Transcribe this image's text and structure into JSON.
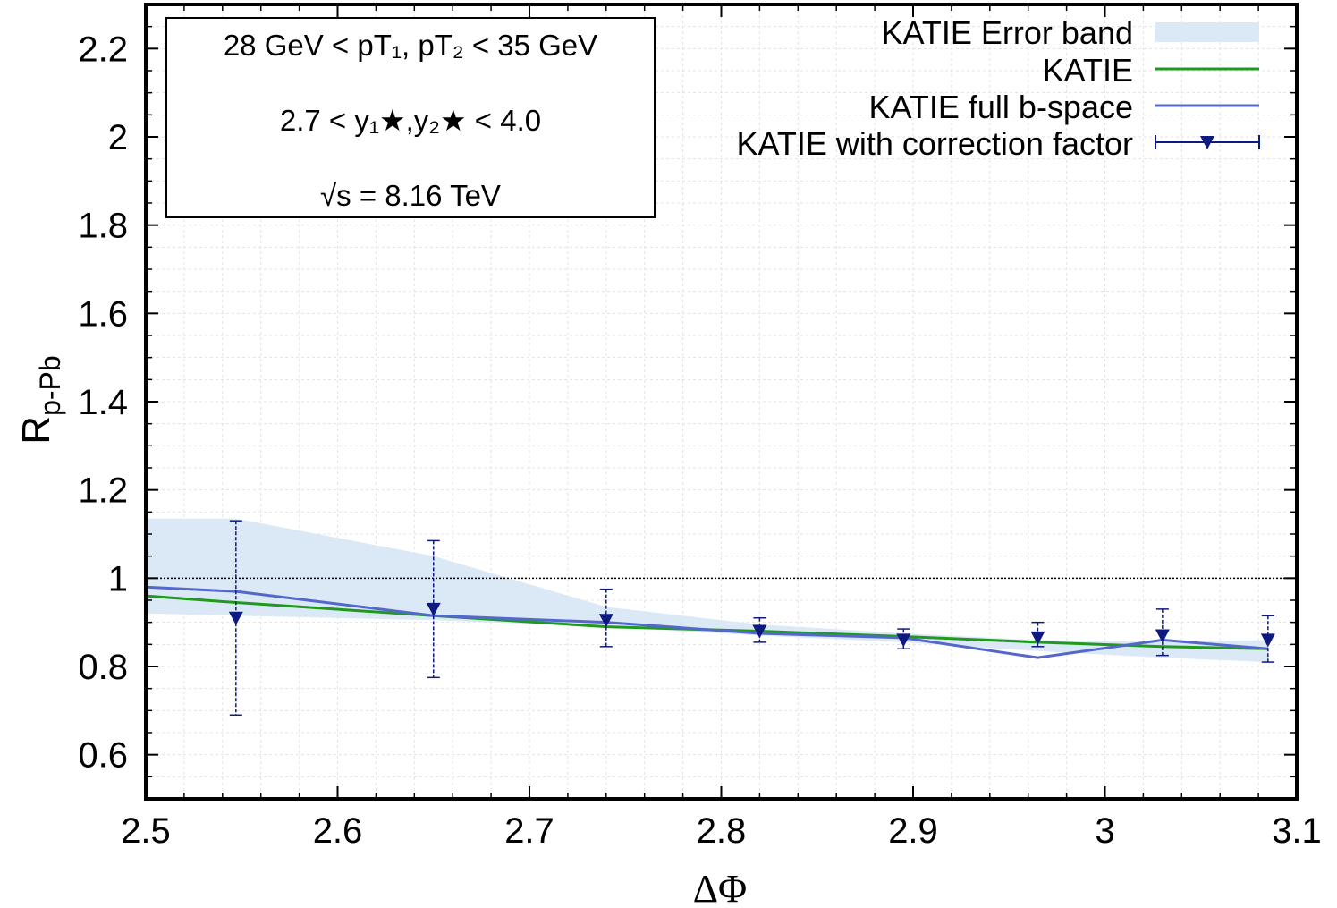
{
  "chart_data": {
    "type": "line",
    "xlabel": "ΔΦ",
    "ylabel": "R",
    "ylabel_sub": "p-Pb",
    "xlim": [
      2.5,
      3.1
    ],
    "ylim": [
      0.5,
      2.3
    ],
    "xticks": [
      2.5,
      2.6,
      2.7,
      2.8,
      2.9,
      3.0,
      3.1
    ],
    "xtick_labels": [
      "2.5",
      "2.6",
      "2.7",
      "2.8",
      "2.9",
      "3",
      "3.1"
    ],
    "yticks": [
      0.6,
      0.8,
      1.0,
      1.2,
      1.4,
      1.6,
      1.8,
      2.0,
      2.2
    ],
    "ytick_labels": [
      "0.6",
      "0.8",
      "1",
      "1.2",
      "1.4",
      "1.6",
      "1.8",
      "2",
      "2.2"
    ],
    "grid": true,
    "reference_line": 1.0,
    "info_box": {
      "line1": "28 GeV < pT₁, pT₂ < 35 GeV",
      "line2": "2.7 < y₁★,y₂★ < 4.0",
      "line3_root": "√s",
      "line3_rest": " = 8.16 TeV"
    },
    "legend": {
      "band": "KATIE Error band",
      "katie": "KATIE",
      "full_b": "KATIE full b-space",
      "corr": "KATIE with correction factor"
    },
    "colors": {
      "band": "#dbe8f6",
      "katie": "#1f9a1f",
      "full_b": "#5468cc",
      "corr": "#0f1a80"
    },
    "series": [
      {
        "name": "KATIE Error band",
        "x": [
          2.5,
          2.547,
          2.65,
          2.74,
          2.82,
          2.895,
          2.965,
          3.03,
          3.085
        ],
        "upper": [
          1.135,
          1.135,
          1.05,
          0.935,
          0.895,
          0.875,
          0.86,
          0.855,
          0.86
        ],
        "lower": [
          0.92,
          0.915,
          0.905,
          0.89,
          0.87,
          0.855,
          0.835,
          0.82,
          0.81
        ]
      },
      {
        "name": "KATIE",
        "x": [
          2.5,
          2.547,
          2.65,
          2.74,
          2.82,
          2.895,
          2.965,
          3.03,
          3.085
        ],
        "y": [
          0.96,
          0.945,
          0.915,
          0.89,
          0.88,
          0.868,
          0.855,
          0.845,
          0.84
        ]
      },
      {
        "name": "KATIE full b-space",
        "x": [
          2.5,
          2.547,
          2.65,
          2.74,
          2.82,
          2.895,
          2.965,
          3.03,
          3.085
        ],
        "y": [
          0.98,
          0.97,
          0.915,
          0.9,
          0.875,
          0.865,
          0.82,
          0.86,
          0.84
        ]
      },
      {
        "name": "KATIE with correction factor",
        "x": [
          2.547,
          2.65,
          2.74,
          2.82,
          2.895,
          2.965,
          3.03,
          3.085
        ],
        "y": [
          0.91,
          0.93,
          0.905,
          0.88,
          0.86,
          0.865,
          0.87,
          0.86
        ],
        "yerr_low": [
          0.69,
          0.775,
          0.845,
          0.855,
          0.84,
          0.845,
          0.825,
          0.81
        ],
        "yerr_high": [
          1.13,
          1.085,
          0.975,
          0.91,
          0.885,
          0.9,
          0.93,
          0.915
        ]
      }
    ]
  }
}
